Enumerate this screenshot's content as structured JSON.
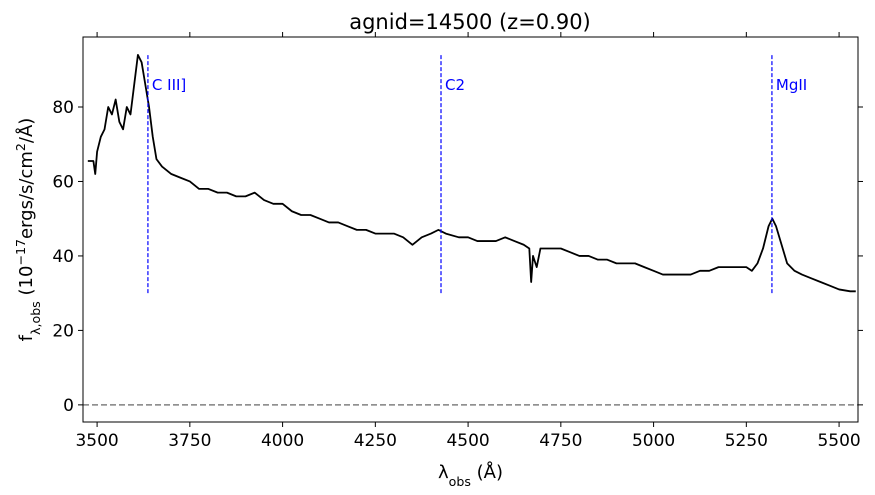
{
  "chart_data": {
    "type": "line",
    "title": "agnid=14500 (z=0.90)",
    "xlabel": [
      {
        "text": "λ"
      },
      {
        "text": "obs",
        "shift": "sub"
      },
      {
        "text": " (Å)"
      }
    ],
    "ylabel": [
      {
        "text": "f"
      },
      {
        "text": "λ,obs",
        "shift": "sub"
      },
      {
        "text": " (10"
      },
      {
        "text": "−17",
        "shift": "super"
      },
      {
        "text": "ergs/s/cm"
      },
      {
        "text": "2",
        "shift": "super"
      },
      {
        "text": "/Å)"
      }
    ],
    "x": [
      3475,
      3490,
      3495,
      3500,
      3510,
      3520,
      3530,
      3540,
      3550,
      3560,
      3570,
      3580,
      3590,
      3600,
      3610,
      3620,
      3630,
      3640,
      3650,
      3660,
      3675,
      3700,
      3725,
      3750,
      3775,
      3800,
      3825,
      3850,
      3875,
      3900,
      3925,
      3950,
      3975,
      4000,
      4025,
      4050,
      4075,
      4100,
      4125,
      4150,
      4175,
      4200,
      4225,
      4250,
      4275,
      4300,
      4325,
      4350,
      4375,
      4400,
      4420,
      4440,
      4475,
      4500,
      4525,
      4550,
      4575,
      4600,
      4625,
      4650,
      4665,
      4670,
      4675,
      4685,
      4695,
      4725,
      4750,
      4775,
      4800,
      4825,
      4850,
      4875,
      4900,
      4925,
      4950,
      4975,
      5000,
      5025,
      5050,
      5075,
      5100,
      5125,
      5150,
      5175,
      5200,
      5225,
      5250,
      5265,
      5280,
      5295,
      5310,
      5320,
      5330,
      5345,
      5360,
      5380,
      5400,
      5425,
      5450,
      5475,
      5500,
      5530,
      5545
    ],
    "values": [
      65.5,
      65.5,
      62,
      68,
      72,
      74,
      80,
      78,
      82,
      76,
      74,
      80,
      78,
      86,
      94,
      92,
      86,
      80,
      72,
      66,
      64,
      62,
      61,
      60,
      58,
      58,
      57,
      57,
      56,
      56,
      57,
      55,
      54,
      54,
      52,
      51,
      51,
      50,
      49,
      49,
      48,
      47,
      47,
      46,
      46,
      46,
      45,
      43,
      45,
      46,
      47,
      46,
      45,
      45,
      44,
      44,
      44,
      45,
      44,
      43,
      42,
      33,
      40,
      37,
      42,
      42,
      42,
      41,
      40,
      40,
      39,
      39,
      38,
      38,
      38,
      37,
      36,
      35,
      35,
      35,
      35,
      36,
      36,
      37,
      37,
      37,
      37,
      36,
      38,
      42,
      48,
      50,
      48,
      43,
      38,
      36,
      35,
      34,
      33,
      32,
      31,
      30.5,
      30.5
    ],
    "color": "#000000",
    "lines": [
      {
        "name": "C III]",
        "x": 3637
      },
      {
        "name": "C2",
        "x": 4427
      },
      {
        "name": "MgII",
        "x": 5319
      }
    ],
    "line_span": [
      30,
      94
    ],
    "line_color": "#0000ff",
    "hline": 0,
    "hline_color": "#808080",
    "xlim": [
      3462,
      5551
    ],
    "ylim": [
      -4.6,
      98.8
    ],
    "xticks": [
      3500,
      3750,
      4000,
      4250,
      4500,
      4750,
      5000,
      5250,
      5500
    ],
    "yticks": [
      0,
      20,
      40,
      60,
      80
    ]
  }
}
